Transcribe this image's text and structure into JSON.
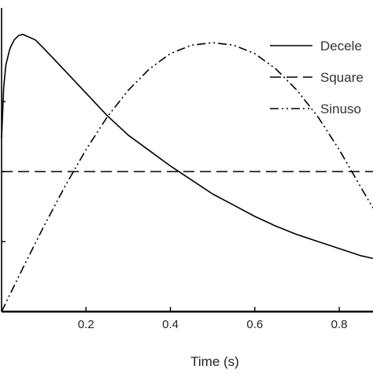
{
  "chart_data": {
    "type": "line",
    "xlabel": "Time (s)",
    "ylabel": "",
    "xlim": [
      0,
      0.88
    ],
    "ylim": [
      0,
      1.0
    ],
    "x_ticks": [
      0.2,
      0.4,
      0.6,
      0.8
    ],
    "y_tick_values": [
      0.25,
      0.5,
      0.75
    ],
    "grid": false,
    "legend_placement": "top-right",
    "series": [
      {
        "name": "Decele",
        "style": "solid",
        "color": "#000000",
        "x": [
          0,
          0.005,
          0.01,
          0.02,
          0.03,
          0.04,
          0.05,
          0.08,
          0.1,
          0.15,
          0.2,
          0.25,
          0.3,
          0.35,
          0.4,
          0.45,
          0.5,
          0.55,
          0.6,
          0.65,
          0.7,
          0.75,
          0.8,
          0.85,
          0.88
        ],
        "values": [
          0.62,
          0.8,
          0.88,
          0.94,
          0.97,
          0.985,
          0.99,
          0.97,
          0.94,
          0.86,
          0.78,
          0.7,
          0.63,
          0.575,
          0.52,
          0.47,
          0.42,
          0.38,
          0.34,
          0.305,
          0.275,
          0.25,
          0.225,
          0.2,
          0.19
        ]
      },
      {
        "name": "Square",
        "style": "dashed",
        "color": "#000000",
        "x": [
          0,
          0.88
        ],
        "values": [
          0.5,
          0.5
        ]
      },
      {
        "name": "Sinuso",
        "style": "dash-dot-dot",
        "color": "#000000",
        "x": [
          0,
          0.05,
          0.1,
          0.15,
          0.2,
          0.25,
          0.3,
          0.35,
          0.4,
          0.45,
          0.5,
          0.55,
          0.6,
          0.65,
          0.7,
          0.75,
          0.8,
          0.85,
          0.88
        ],
        "values": [
          0.0,
          0.154,
          0.304,
          0.447,
          0.578,
          0.694,
          0.79,
          0.866,
          0.921,
          0.951,
          0.96,
          0.951,
          0.921,
          0.866,
          0.79,
          0.694,
          0.578,
          0.447,
          0.37
        ]
      }
    ]
  }
}
